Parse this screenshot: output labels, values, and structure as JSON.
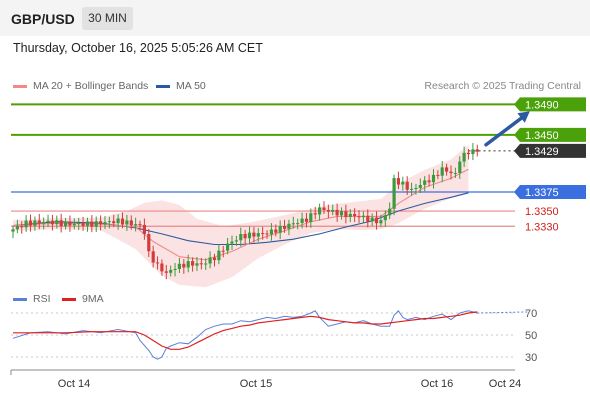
{
  "header": {
    "symbol": "GBP/USD",
    "timeframe": "30 MIN"
  },
  "datetime": "Thursday, October 16, 2025 5:05:26 AM CET",
  "legend": {
    "ma20": {
      "label": "MA 20 + Bollinger Bands",
      "color": "#f08a8a"
    },
    "ma50": {
      "label": "MA 50",
      "color": "#2b5aa0"
    }
  },
  "credit": "Research © 2025 Trading Central",
  "rsi_legend": {
    "rsi": {
      "label": "RSI",
      "color": "#5b7fd6"
    },
    "ma9": {
      "label": "9MA",
      "color": "#e02020"
    }
  },
  "chart_data": [
    {
      "type": "candlestick",
      "ylim": [
        1.3245,
        1.3505
      ],
      "x_ticks": [
        "Oct 14",
        "Oct 15",
        "Oct 16",
        "Oct 24"
      ],
      "levels": [
        {
          "value": 1.349,
          "label": "1.3490",
          "kind": "resistance"
        },
        {
          "value": 1.345,
          "label": "1.3450",
          "kind": "resistance"
        },
        {
          "value": 1.3429,
          "label": "1.3429",
          "kind": "current"
        },
        {
          "value": 1.3375,
          "label": "1.3375",
          "kind": "pivot"
        },
        {
          "value": 1.335,
          "label": "1.3350",
          "kind": "support"
        },
        {
          "value": 1.333,
          "label": "1.3330",
          "kind": "support"
        }
      ],
      "colors": {
        "up": "#3c9a3c",
        "down": "#d23c3c",
        "resistance": "#4aa10a",
        "pivot": "#3b6fe0",
        "support": "#e88a8a",
        "current": "#333333",
        "arrow": "#2b5aa0"
      },
      "close_path": [
        [
          0,
          1.3326
        ],
        [
          3,
          1.3334
        ],
        [
          8,
          1.3336
        ],
        [
          12,
          1.3333
        ],
        [
          18,
          1.3333
        ],
        [
          24,
          1.3337
        ],
        [
          29,
          1.3331
        ],
        [
          30,
          1.3322
        ],
        [
          31,
          1.3294
        ],
        [
          33,
          1.3278
        ],
        [
          35,
          1.3268
        ],
        [
          37,
          1.3276
        ],
        [
          40,
          1.3281
        ],
        [
          43,
          1.328
        ],
        [
          46,
          1.3289
        ],
        [
          49,
          1.3306
        ],
        [
          52,
          1.3317
        ],
        [
          55,
          1.3319
        ],
        [
          58,
          1.3321
        ],
        [
          61,
          1.3327
        ],
        [
          64,
          1.3334
        ],
        [
          67,
          1.3339
        ],
        [
          70,
          1.3353
        ],
        [
          73,
          1.3349
        ],
        [
          76,
          1.3345
        ],
        [
          79,
          1.3343
        ],
        [
          82,
          1.3338
        ],
        [
          84,
          1.3336
        ],
        [
          86,
          1.3354
        ],
        [
          87,
          1.3391
        ],
        [
          89,
          1.3385
        ],
        [
          91,
          1.3377
        ],
        [
          93,
          1.3385
        ],
        [
          96,
          1.3394
        ],
        [
          98,
          1.3405
        ],
        [
          101,
          1.3398
        ],
        [
          102,
          1.3418
        ],
        [
          104,
          1.3428
        ],
        [
          106,
          1.3429
        ]
      ],
      "ma50_path": [
        [
          0,
          1.3331
        ],
        [
          10,
          1.3336
        ],
        [
          20,
          1.3334
        ],
        [
          28,
          1.3328
        ],
        [
          34,
          1.332
        ],
        [
          40,
          1.3311
        ],
        [
          46,
          1.3306
        ],
        [
          52,
          1.3306
        ],
        [
          58,
          1.3309
        ],
        [
          64,
          1.3313
        ],
        [
          70,
          1.332
        ],
        [
          76,
          1.3329
        ],
        [
          82,
          1.3337
        ],
        [
          88,
          1.335
        ],
        [
          94,
          1.336
        ],
        [
          100,
          1.3368
        ],
        [
          104,
          1.3374
        ]
      ],
      "ma20_path": [
        [
          0,
          1.3331
        ],
        [
          10,
          1.3334
        ],
        [
          20,
          1.3333
        ],
        [
          28,
          1.3329
        ],
        [
          32,
          1.331
        ],
        [
          38,
          1.329
        ],
        [
          44,
          1.3286
        ],
        [
          50,
          1.3297
        ],
        [
          56,
          1.3313
        ],
        [
          62,
          1.3324
        ],
        [
          68,
          1.3336
        ],
        [
          74,
          1.3343
        ],
        [
          80,
          1.3343
        ],
        [
          84,
          1.3343
        ],
        [
          88,
          1.336
        ],
        [
          94,
          1.3381
        ],
        [
          100,
          1.3393
        ],
        [
          104,
          1.3405
        ]
      ],
      "bb_upper_path": [
        [
          0,
          1.3338
        ],
        [
          10,
          1.3341
        ],
        [
          20,
          1.3341
        ],
        [
          26,
          1.335
        ],
        [
          30,
          1.3361
        ],
        [
          34,
          1.3364
        ],
        [
          38,
          1.3358
        ],
        [
          42,
          1.334
        ],
        [
          48,
          1.333
        ],
        [
          54,
          1.3335
        ],
        [
          60,
          1.3342
        ],
        [
          66,
          1.335
        ],
        [
          72,
          1.3358
        ],
        [
          78,
          1.3362
        ],
        [
          84,
          1.3366
        ],
        [
          88,
          1.3386
        ],
        [
          94,
          1.3404
        ],
        [
          100,
          1.3418
        ],
        [
          104,
          1.3437
        ]
      ],
      "bb_lower_path": [
        [
          0,
          1.3324
        ],
        [
          10,
          1.3326
        ],
        [
          20,
          1.3325
        ],
        [
          28,
          1.33
        ],
        [
          34,
          1.3265
        ],
        [
          38,
          1.3253
        ],
        [
          44,
          1.325
        ],
        [
          50,
          1.3263
        ],
        [
          56,
          1.3288
        ],
        [
          62,
          1.3306
        ],
        [
          68,
          1.3321
        ],
        [
          74,
          1.3326
        ],
        [
          80,
          1.3325
        ],
        [
          84,
          1.3326
        ],
        [
          88,
          1.3334
        ],
        [
          94,
          1.3353
        ],
        [
          100,
          1.3367
        ],
        [
          104,
          1.3373
        ]
      ],
      "forecast_arrow": {
        "from": [
          108,
          1.3437
        ],
        "to": [
          118,
          1.3481
        ]
      }
    },
    {
      "type": "line",
      "ylim": [
        20,
        80
      ],
      "y_ticks": [
        70,
        50,
        30
      ],
      "series": [
        {
          "name": "RSI",
          "path": [
            [
              0,
              47
            ],
            [
              4,
              52
            ],
            [
              8,
              53
            ],
            [
              12,
              51
            ],
            [
              16,
              54
            ],
            [
              20,
              52
            ],
            [
              24,
              55
            ],
            [
              28,
              52
            ],
            [
              29,
              45
            ],
            [
              31,
              36
            ],
            [
              32,
              30
            ],
            [
              33,
              28
            ],
            [
              34,
              30
            ],
            [
              35,
              38
            ],
            [
              36,
              40
            ],
            [
              38,
              43
            ],
            [
              40,
              42
            ],
            [
              42,
              48
            ],
            [
              44,
              55
            ],
            [
              46,
              58
            ],
            [
              48,
              60
            ],
            [
              50,
              60
            ],
            [
              52,
              63
            ],
            [
              54,
              62
            ],
            [
              56,
              64
            ],
            [
              58,
              66
            ],
            [
              60,
              65
            ],
            [
              62,
              67
            ],
            [
              64,
              66
            ],
            [
              66,
              67
            ],
            [
              68,
              70
            ],
            [
              69,
              72
            ],
            [
              70,
              66
            ],
            [
              71,
              62
            ],
            [
              72,
              58
            ],
            [
              74,
              60
            ],
            [
              76,
              62
            ],
            [
              78,
              61
            ],
            [
              80,
              63
            ],
            [
              82,
              60
            ],
            [
              84,
              58
            ],
            [
              86,
              58
            ],
            [
              87,
              68
            ],
            [
              88,
              72
            ],
            [
              89,
              66
            ],
            [
              90,
              64
            ],
            [
              92,
              66
            ],
            [
              94,
              64
            ],
            [
              96,
              67
            ],
            [
              98,
              69
            ],
            [
              100,
              64
            ],
            [
              102,
              70
            ],
            [
              104,
              72
            ],
            [
              106,
              70
            ]
          ]
        },
        {
          "name": "9MA",
          "path": [
            [
              0,
              52
            ],
            [
              6,
              52
            ],
            [
              12,
              52
            ],
            [
              18,
              53
            ],
            [
              24,
              53
            ],
            [
              28,
              53
            ],
            [
              30,
              50
            ],
            [
              32,
              45
            ],
            [
              34,
              40
            ],
            [
              36,
              37
            ],
            [
              38,
              37
            ],
            [
              40,
              39
            ],
            [
              42,
              43
            ],
            [
              44,
              47
            ],
            [
              46,
              51
            ],
            [
              48,
              54
            ],
            [
              50,
              56
            ],
            [
              52,
              58
            ],
            [
              54,
              59
            ],
            [
              56,
              61
            ],
            [
              58,
              62
            ],
            [
              60,
              63
            ],
            [
              62,
              64
            ],
            [
              64,
              65
            ],
            [
              66,
              66
            ],
            [
              68,
              67
            ],
            [
              70,
              66
            ],
            [
              72,
              64
            ],
            [
              74,
              63
            ],
            [
              76,
              62
            ],
            [
              78,
              61
            ],
            [
              80,
              61
            ],
            [
              82,
              60
            ],
            [
              84,
              60
            ],
            [
              86,
              61
            ],
            [
              88,
              62
            ],
            [
              90,
              63
            ],
            [
              92,
              64
            ],
            [
              94,
              65
            ],
            [
              96,
              65
            ],
            [
              98,
              66
            ],
            [
              100,
              67
            ],
            [
              102,
              68
            ],
            [
              104,
              70
            ],
            [
              106,
              71
            ]
          ]
        }
      ],
      "forecast_to": [
        118,
        71
      ]
    }
  ]
}
